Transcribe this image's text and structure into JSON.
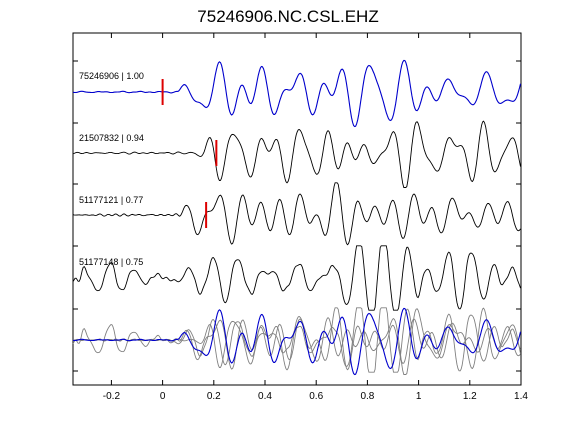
{
  "chart_data": {
    "type": "line",
    "title": "75246906.NC.CSL.EHZ",
    "xlabel": "",
    "ylabel": "",
    "xlim": [
      -0.35,
      1.4
    ],
    "xticks": [
      -0.2,
      0,
      0.2,
      0.4,
      0.6,
      0.8,
      1,
      1.2,
      1.4
    ],
    "xtick_labels": [
      "-0.2",
      "0",
      "0.2",
      "0.4",
      "0.6",
      "0.8",
      "1",
      "1.2",
      "1.4"
    ],
    "grid": false,
    "colors": {
      "reference": "#0000cc",
      "trace": "#000000",
      "overlay": "#808080",
      "pick": "#dd0000"
    },
    "traces": [
      {
        "label": "75246906 | 1.00",
        "pick_time": 0.0,
        "color": "#0000cc"
      },
      {
        "label": "21507832 | 0.94",
        "pick_time": 0.21,
        "color": "#000000"
      },
      {
        "label": "51177121 | 0.77",
        "pick_time": 0.17,
        "color": "#000000"
      },
      {
        "label": "51177148 | 0.75",
        "pick_time": null,
        "color": "#000000"
      }
    ],
    "overlay_panel": "stacked aligned waveforms (reference trace in blue, others in gray)"
  }
}
